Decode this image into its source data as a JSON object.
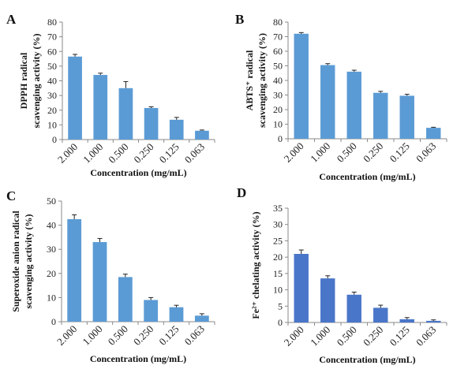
{
  "chart_data": [
    {
      "type": "bar",
      "panel": "A",
      "categories": [
        "2.000",
        "1.000",
        "0.500",
        "0.250",
        "0.125",
        "0.063"
      ],
      "values": [
        56.5,
        44.0,
        35.0,
        21.5,
        13.5,
        6.0
      ],
      "errors": [
        1.5,
        1.2,
        4.5,
        0.8,
        1.6,
        0.5
      ],
      "ylabel_lines": [
        "DPPH radical",
        "scavenging activity (%)"
      ],
      "xlabel": "Concentration  (mg/mL)",
      "ylim": [
        0,
        80
      ],
      "yticks": [
        0,
        10,
        20,
        30,
        40,
        50,
        60,
        70,
        80
      ],
      "bar_color": "#5b9bd5"
    },
    {
      "type": "bar",
      "panel": "B",
      "categories": [
        "2.000",
        "1.000",
        "0.500",
        "0.250",
        "0.125",
        "0.063"
      ],
      "values": [
        72.0,
        50.5,
        46.0,
        31.5,
        29.5,
        7.5
      ],
      "errors": [
        0.8,
        1.0,
        1.0,
        1.0,
        1.0,
        0.4
      ],
      "ylabel_lines": [
        "ABTS⁺ radical",
        "scavenging activity (%)"
      ],
      "xlabel": "Concentration  (mg/mL)",
      "ylim": [
        0,
        80
      ],
      "yticks": [
        0,
        10,
        20,
        30,
        40,
        50,
        60,
        70,
        80
      ],
      "bar_color": "#5b9bd5"
    },
    {
      "type": "bar",
      "panel": "C",
      "categories": [
        "2.000",
        "1.000",
        "0.500",
        "0.250",
        "0.125",
        "0.063"
      ],
      "values": [
        42.5,
        33.0,
        18.5,
        9.0,
        6.0,
        2.5
      ],
      "errors": [
        1.8,
        1.5,
        1.2,
        1.0,
        0.8,
        0.8
      ],
      "ylabel_lines": [
        "Superoxide anion radical",
        "scavenging activity (%)"
      ],
      "xlabel": "Concentration  (mg/mL)",
      "ylim": [
        0,
        50
      ],
      "yticks": [
        0,
        10,
        20,
        30,
        40,
        50
      ],
      "bar_color": "#5b9bd5"
    },
    {
      "type": "bar",
      "panel": "D",
      "categories": [
        "2.000",
        "1.000",
        "0.500",
        "0.250",
        "0.125",
        "0.063"
      ],
      "values": [
        21.0,
        13.5,
        8.5,
        4.5,
        1.0,
        0.5
      ],
      "errors": [
        1.2,
        0.8,
        0.8,
        0.8,
        0.5,
        0.3
      ],
      "ylabel_lines": [
        "Fe²⁺ chelating activity (%)"
      ],
      "xlabel": "Concentration  (mg/mL)",
      "ylim": [
        0,
        35
      ],
      "yticks": [
        0,
        5,
        10,
        15,
        20,
        25,
        30,
        35
      ],
      "bar_color": "#4a76c9"
    }
  ]
}
